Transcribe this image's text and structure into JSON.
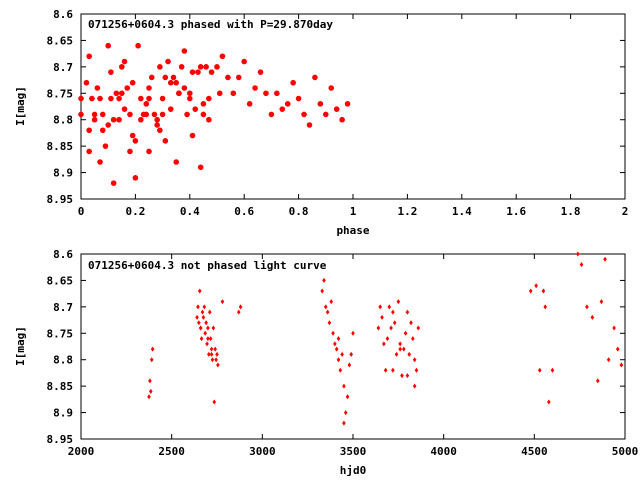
{
  "chart_data": [
    {
      "type": "scatter",
      "title": "071256+0604.3 phased with P=29.870day",
      "xlabel": "phase",
      "ylabel": "I[mag]",
      "xlim": [
        0,
        2
      ],
      "ylim": [
        8.95,
        8.6
      ],
      "y_inverted": true,
      "x_ticks": [
        0,
        0.2,
        0.4,
        0.6,
        0.8,
        1,
        1.2,
        1.4,
        1.6,
        1.8,
        2
      ],
      "x_tick_labels": [
        "0",
        "0.2",
        "0.4",
        "0.6",
        "0.8",
        "1",
        "1.2",
        "1.4",
        "1.6",
        "1.8",
        "2"
      ],
      "y_ticks": [
        8.6,
        8.65,
        8.7,
        8.75,
        8.8,
        8.85,
        8.9,
        8.95
      ],
      "y_tick_labels": [
        "8.6",
        "8.65",
        "8.7",
        "8.75",
        "8.8",
        "8.85",
        "8.9",
        "8.95"
      ],
      "marker_color": "#ff0000",
      "marker": "filled-circle",
      "grid": false,
      "x": [
        0.0,
        0.02,
        0.03,
        0.03,
        0.04,
        0.05,
        0.06,
        0.07,
        0.08,
        0.09,
        0.1,
        0.11,
        0.11,
        0.12,
        0.13,
        0.14,
        0.15,
        0.16,
        0.17,
        0.18,
        0.19,
        0.2,
        0.21,
        0.22,
        0.23,
        0.24,
        0.25,
        0.26,
        0.27,
        0.28,
        0.29,
        0.3,
        0.31,
        0.32,
        0.33,
        0.34,
        0.35,
        0.36,
        0.37,
        0.38,
        0.39,
        0.4,
        0.41,
        0.42,
        0.43,
        0.44,
        0.45,
        0.46,
        0.47,
        0.48,
        0.5,
        0.51,
        0.52,
        0.54,
        0.56,
        0.58,
        0.6,
        0.62,
        0.64,
        0.66,
        0.68,
        0.7,
        0.72,
        0.74,
        0.76,
        0.78,
        0.8,
        0.82,
        0.84,
        0.86,
        0.88,
        0.9,
        0.92,
        0.94,
        0.96,
        0.98,
        0.0,
        0.05,
        0.1,
        0.15,
        0.2,
        0.25,
        0.3,
        0.35,
        0.4,
        0.45,
        0.12,
        0.08,
        0.25,
        0.44,
        0.36,
        0.18,
        0.22,
        0.28,
        0.16,
        0.33,
        0.07,
        0.14,
        0.29,
        0.41,
        0.03,
        0.19,
        0.38,
        0.47,
        0.31,
        0.24
      ],
      "y": [
        8.79,
        8.73,
        8.68,
        8.82,
        8.76,
        8.79,
        8.74,
        8.88,
        8.79,
        8.85,
        8.66,
        8.76,
        8.71,
        8.92,
        8.75,
        8.8,
        8.7,
        8.69,
        8.74,
        8.86,
        8.73,
        8.91,
        8.66,
        8.8,
        8.79,
        8.77,
        8.74,
        8.72,
        8.79,
        8.81,
        8.7,
        8.76,
        8.72,
        8.69,
        8.78,
        8.72,
        8.73,
        8.75,
        8.7,
        8.67,
        8.79,
        8.76,
        8.71,
        8.78,
        8.71,
        8.7,
        8.77,
        8.7,
        8.76,
        8.71,
        8.7,
        8.75,
        8.68,
        8.72,
        8.75,
        8.72,
        8.69,
        8.77,
        8.74,
        8.71,
        8.75,
        8.79,
        8.75,
        8.78,
        8.77,
        8.73,
        8.76,
        8.79,
        8.81,
        8.72,
        8.77,
        8.79,
        8.74,
        8.78,
        8.8,
        8.77,
        8.76,
        8.8,
        8.81,
        8.75,
        8.84,
        8.76,
        8.79,
        8.88,
        8.75,
        8.79,
        8.8,
        8.82,
        8.86,
        8.89,
        8.75,
        8.79,
        8.76,
        8.8,
        8.78,
        8.73,
        8.76,
        8.76,
        8.82,
        8.83,
        8.86,
        8.83,
        8.74,
        8.8,
        8.84,
        8.79
      ]
    },
    {
      "type": "scatter",
      "title": "071256+0604.3 not phased light curve",
      "xlabel": "hjd0",
      "ylabel": "I[mag]",
      "xlim": [
        2000,
        5000
      ],
      "ylim": [
        8.95,
        8.6
      ],
      "y_inverted": true,
      "x_ticks": [
        2000,
        2500,
        3000,
        3500,
        4000,
        4500,
        5000
      ],
      "x_tick_labels": [
        "2000",
        "2500",
        "3000",
        "3500",
        "4000",
        "4500",
        "5000"
      ],
      "y_ticks": [
        8.6,
        8.65,
        8.7,
        8.75,
        8.8,
        8.85,
        8.9,
        8.95
      ],
      "y_tick_labels": [
        "8.6",
        "8.65",
        "8.7",
        "8.75",
        "8.8",
        "8.85",
        "8.9",
        "8.95"
      ],
      "marker_color": "#ff0000",
      "marker": "small-diamond",
      "grid": false,
      "x": [
        2375,
        2380,
        2385,
        2390,
        2395,
        2640,
        2645,
        2650,
        2655,
        2660,
        2665,
        2670,
        2675,
        2680,
        2685,
        2690,
        2695,
        2700,
        2705,
        2710,
        2715,
        2720,
        2725,
        2730,
        2735,
        2740,
        2745,
        2750,
        2755,
        2780,
        2870,
        2880,
        3330,
        3340,
        3350,
        3360,
        3370,
        3380,
        3390,
        3400,
        3410,
        3420,
        3430,
        3440,
        3450,
        3460,
        3470,
        3480,
        3490,
        3500,
        3640,
        3650,
        3660,
        3670,
        3680,
        3690,
        3700,
        3710,
        3720,
        3730,
        3740,
        3750,
        3760,
        3770,
        3780,
        3790,
        3800,
        3810,
        3820,
        3830,
        3840,
        3850,
        3860,
        4480,
        4510,
        4530,
        4550,
        4560,
        4580,
        4600,
        4740,
        4760,
        4790,
        4820,
        4850,
        4870,
        4890,
        4910,
        4940,
        4960,
        4980,
        2660,
        2700,
        2720,
        3420,
        3450,
        3720,
        3760,
        3800,
        3840
      ],
      "y": [
        8.87,
        8.84,
        8.86,
        8.8,
        8.78,
        8.72,
        8.7,
        8.73,
        8.67,
        8.74,
        8.76,
        8.71,
        8.72,
        8.7,
        8.75,
        8.73,
        8.77,
        8.74,
        8.79,
        8.71,
        8.76,
        8.78,
        8.8,
        8.74,
        8.88,
        8.78,
        8.8,
        8.79,
        8.81,
        8.69,
        8.71,
        8.7,
        8.67,
        8.65,
        8.7,
        8.71,
        8.73,
        8.69,
        8.75,
        8.77,
        8.78,
        8.8,
        8.82,
        8.79,
        8.85,
        8.9,
        8.87,
        8.81,
        8.79,
        8.75,
        8.74,
        8.7,
        8.72,
        8.77,
        8.82,
        8.76,
        8.7,
        8.74,
        8.71,
        8.73,
        8.79,
        8.69,
        8.77,
        8.83,
        8.78,
        8.75,
        8.71,
        8.79,
        8.73,
        8.76,
        8.8,
        8.82,
        8.74,
        8.67,
        8.66,
        8.82,
        8.67,
        8.7,
        8.88,
        8.82,
        8.6,
        8.62,
        8.7,
        8.72,
        8.84,
        8.69,
        8.61,
        8.8,
        8.74,
        8.78,
        8.81,
        8.74,
        8.76,
        8.79,
        8.76,
        8.92,
        8.82,
        8.78,
        8.83,
        8.85
      ]
    }
  ]
}
